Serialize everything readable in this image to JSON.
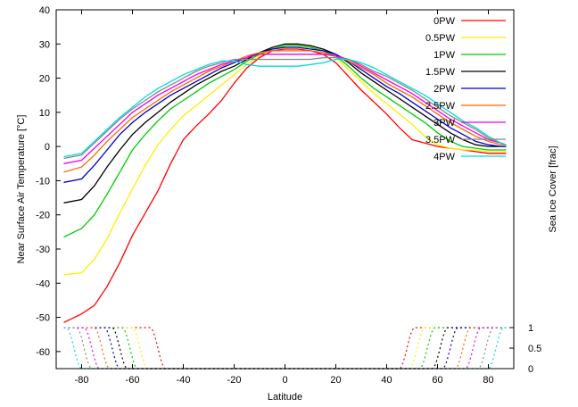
{
  "chart_data": {
    "type": "line",
    "xlabel": "Latitude",
    "ylabel": "Near Surface Air Temperature [°C]",
    "y2label": "Sea Ice Cover [frac]",
    "xlim": [
      -90,
      90
    ],
    "ylim": [
      -65,
      40
    ],
    "xticks": [
      -80,
      -60,
      -40,
      -20,
      0,
      20,
      40,
      60,
      80
    ],
    "yticks": [
      -60,
      -50,
      -40,
      -30,
      -20,
      -10,
      0,
      10,
      20,
      30,
      40
    ],
    "y2ticks": [
      {
        "value": 1,
        "label": "1"
      },
      {
        "value": 0.5,
        "label": "0.5"
      },
      {
        "value": 0,
        "label": "0"
      }
    ],
    "y2_range": {
      "frac0_at_temp": -65,
      "frac1_at_temp": -53
    },
    "grid": false,
    "legend_position": "top-right",
    "x": [
      -87,
      -80,
      -75,
      -70,
      -65,
      -60,
      -55,
      -50,
      -45,
      -40,
      -35,
      -30,
      -25,
      -20,
      -15,
      -10,
      -5,
      0,
      5,
      10,
      15,
      20,
      25,
      30,
      35,
      40,
      45,
      50,
      55,
      60,
      65,
      70,
      75,
      80,
      85,
      87
    ],
    "series": [
      {
        "name": "0PW",
        "color": "#ff0000",
        "temp": [
          -51.5,
          -49,
          -46.5,
          -41,
          -34,
          -26,
          -19.5,
          -13,
          -5,
          2,
          6,
          9.5,
          13.5,
          18.5,
          23,
          26,
          28,
          28.5,
          28.5,
          28,
          27,
          24.5,
          20.5,
          16.5,
          13,
          9.5,
          5.5,
          2,
          1,
          0,
          -0.5,
          -1,
          -1.5,
          -2,
          -2,
          -2
        ],
        "ice_edges": [
          -50,
          48
        ]
      },
      {
        "name": "0.5PW",
        "color": "#ffee00",
        "temp": [
          -37.5,
          -37,
          -33,
          -27,
          -19.5,
          -12.5,
          -5.5,
          0.5,
          5,
          9,
          12,
          15,
          18,
          21,
          24,
          26.5,
          28.5,
          29.5,
          29.5,
          29,
          28,
          26,
          22.5,
          19,
          15.5,
          12.5,
          9.5,
          6.5,
          3,
          0.5,
          -0.5,
          -1,
          -1,
          -1.5,
          -1.5,
          -1.5
        ],
        "ice_edges": [
          -57,
          52
        ]
      },
      {
        "name": "1PW",
        "color": "#00cc00",
        "temp": [
          -26.5,
          -24,
          -20,
          -14,
          -7.5,
          -1,
          3.5,
          7.5,
          11,
          13.5,
          16,
          18.5,
          20.5,
          22.5,
          25,
          27,
          28.5,
          29.5,
          29.5,
          29,
          28,
          26.5,
          23.5,
          20,
          17,
          14.5,
          12,
          9.5,
          7,
          4,
          1.5,
          0,
          -0.5,
          -1,
          -1,
          -1
        ],
        "ice_edges": [
          -61,
          56
        ]
      },
      {
        "name": "1.5PW",
        "color": "#000000",
        "temp": [
          -16.5,
          -15.5,
          -11.5,
          -6,
          -1,
          3.5,
          7,
          10,
          13,
          15.5,
          18,
          20,
          22,
          23.5,
          25.5,
          27.5,
          29,
          30,
          30,
          29.5,
          28.5,
          27,
          24.5,
          21.5,
          19,
          16.5,
          14,
          11.5,
          9,
          6.5,
          4,
          2,
          0.5,
          0,
          0,
          0
        ],
        "ice_edges": [
          -65,
          61
        ]
      },
      {
        "name": "2PW",
        "color": "#0000cc",
        "temp": [
          -10.5,
          -9.5,
          -5.5,
          -1,
          3.5,
          7,
          10,
          12.5,
          15,
          17,
          19,
          21,
          23,
          24.5,
          26,
          27.5,
          28.5,
          29,
          29,
          28.5,
          28,
          27,
          25,
          22.5,
          20,
          17.5,
          15.5,
          13,
          10.5,
          8,
          5.5,
          3.5,
          1.5,
          0.5,
          0,
          0
        ],
        "ice_edges": [
          -68,
          65
        ]
      },
      {
        "name": "2.5PW",
        "color": "#ff6600",
        "temp": [
          -7.5,
          -6,
          -2.5,
          1.5,
          5,
          8.5,
          11,
          13.5,
          16,
          18,
          20,
          22,
          23.5,
          25,
          26.5,
          27.5,
          28,
          28,
          28,
          28,
          27.5,
          26.5,
          25,
          23,
          21,
          18.5,
          16.5,
          14.5,
          12,
          9.5,
          7,
          5,
          3,
          1.5,
          0.5,
          0.5
        ],
        "ice_edges": [
          -72,
          70
        ]
      },
      {
        "name": "3PW",
        "color": "#ee00ee",
        "temp": [
          -5,
          -4,
          -0.5,
          3,
          6.5,
          10,
          12.5,
          15,
          17,
          19,
          21,
          22.5,
          24,
          25,
          26,
          27,
          27,
          27,
          27,
          27,
          27,
          26.5,
          25.5,
          23.5,
          21.5,
          19.5,
          17.5,
          15.5,
          13,
          10.5,
          8,
          6,
          4,
          2,
          1,
          0.5
        ],
        "ice_edges": [
          -76,
          74
        ]
      },
      {
        "name": "3.5PW",
        "color": "#888888",
        "temp": [
          -3.5,
          -2.5,
          1,
          4.5,
          8,
          11,
          13.5,
          16,
          18,
          20,
          22,
          23.5,
          24.5,
          25.5,
          25.5,
          25.5,
          25.5,
          25.5,
          25.5,
          25.5,
          26,
          26,
          25.5,
          24,
          22,
          20.5,
          18.5,
          16.5,
          14,
          11.5,
          9,
          7,
          5,
          2.5,
          1,
          0.5
        ],
        "ice_edges": [
          -79,
          79
        ]
      },
      {
        "name": "4PW",
        "color": "#00dddd",
        "temp": [
          -3,
          -2,
          1.5,
          5,
          8.5,
          11.5,
          14.5,
          17,
          19,
          21,
          22.5,
          24,
          25,
          25,
          24,
          23.5,
          23.5,
          23.5,
          23.5,
          24,
          24.5,
          25.5,
          25.5,
          24.5,
          23,
          21,
          19,
          17,
          15,
          12.5,
          10,
          7.5,
          5.5,
          3,
          1,
          0.5
        ],
        "ice_edges": [
          -83,
          83
        ]
      }
    ]
  }
}
